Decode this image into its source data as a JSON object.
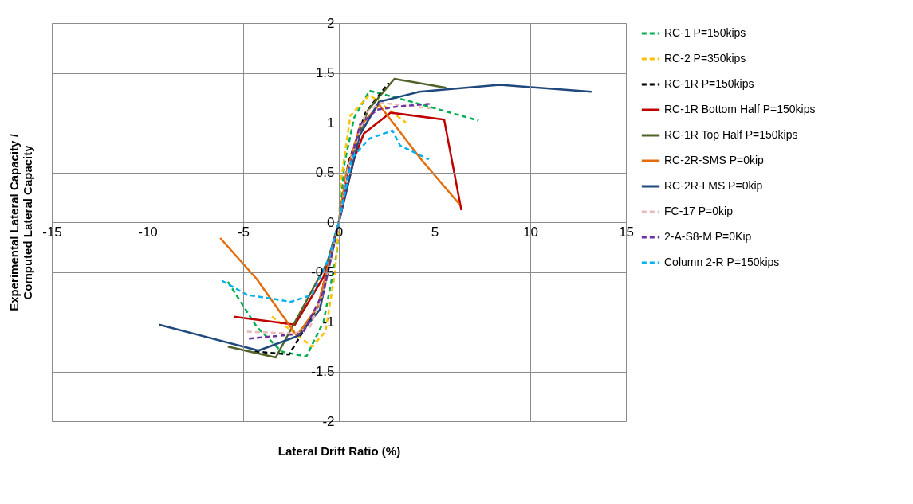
{
  "chart_data": {
    "type": "line",
    "xlabel": "Lateral Drift Ratio (%)",
    "ylabel": "Experimental Lateral Capacity / Computed Lateral Capacity",
    "xlim": [
      -15,
      15
    ],
    "xticks": [
      -15,
      -10,
      -5,
      0,
      5,
      10,
      15
    ],
    "ylim": [
      -2,
      2
    ],
    "yticks": [
      -2,
      -1.5,
      -1,
      -0.5,
      0,
      0.5,
      1,
      1.5,
      2
    ],
    "grid": true,
    "legend": "right",
    "series": [
      {
        "name": "RC-1 P=150kips",
        "color": "#00b050",
        "line_style": "dashed",
        "x": [
          -5.8,
          -4.3,
          -3.0,
          -1.7,
          -0.8,
          -0.1,
          0,
          0.3,
          0.8,
          1.6,
          3.6,
          7.3
        ],
        "values": [
          -0.6,
          -1.05,
          -1.3,
          -1.35,
          -1.0,
          -0.3,
          0,
          0.6,
          1.05,
          1.32,
          1.22,
          1.02
        ]
      },
      {
        "name": "RC-2 P=350kips",
        "color": "#ffc000",
        "line_style": "dashed",
        "x": [
          -3.5,
          -2.4,
          -1.4,
          -0.7,
          -0.2,
          0,
          0.1,
          0.6,
          1.6,
          3.5
        ],
        "values": [
          -0.95,
          -1.1,
          -1.25,
          -1.1,
          -0.5,
          0,
          0.4,
          1.07,
          1.28,
          1.0
        ]
      },
      {
        "name": "RC-1R P=150kips",
        "color": "#000000",
        "line_style": "dashed",
        "x": [
          -4.4,
          -2.6,
          -1.1,
          0,
          0.5,
          1.4,
          2.6
        ],
        "values": [
          -1.3,
          -1.33,
          -0.85,
          0,
          0.6,
          1.1,
          1.4
        ]
      },
      {
        "name": "RC-1R Bottom Half P=150kips",
        "color": "#c00000",
        "line_style": "solid",
        "x": [
          -5.5,
          -2.3,
          -0.8,
          0,
          0.8,
          1.3,
          2.7,
          5.5,
          6.4
        ],
        "values": [
          -0.95,
          -1.03,
          -0.55,
          0,
          0.64,
          0.89,
          1.1,
          1.03,
          0.12
        ]
      },
      {
        "name": "RC-1R Top  Half P=150kips",
        "color": "#4f6228",
        "line_style": "solid",
        "x": [
          -5.8,
          -3.3,
          -0.6,
          0,
          0.4,
          1.5,
          2.9,
          5.6
        ],
        "values": [
          -1.25,
          -1.36,
          -0.4,
          0,
          0.5,
          1.12,
          1.44,
          1.35
        ]
      },
      {
        "name": "RC-2R-SMS P=0kip",
        "color": "#e46c0a",
        "line_style": "solid",
        "x": [
          -6.2,
          -4.3,
          -2.2,
          -1.1,
          0,
          0.4,
          1.1,
          2.1,
          4.3,
          6.3
        ],
        "values": [
          -0.16,
          -0.57,
          -1.14,
          -0.85,
          0,
          0.5,
          0.96,
          1.18,
          0.63,
          0.18
        ]
      },
      {
        "name": "RC-2R-LMS P=0kip",
        "color": "#1f497d",
        "line_style": "solid",
        "x": [
          -9.4,
          -4.2,
          -2.1,
          -1.0,
          0,
          1.1,
          2.1,
          4.2,
          8.4,
          13.2
        ],
        "values": [
          -1.03,
          -1.29,
          -1.14,
          -0.88,
          0,
          0.88,
          1.21,
          1.31,
          1.38,
          1.31
        ]
      },
      {
        "name": "FC-17 P=0kip",
        "color": "#e6b9b8",
        "line_style": "dashed",
        "x": [
          -4.8,
          -2.3,
          -1.5,
          -0.8,
          0,
          0.5,
          1.4,
          2.2,
          4.9
        ],
        "values": [
          -1.1,
          -1.12,
          -1.05,
          -0.7,
          0,
          0.55,
          1.1,
          1.2,
          1.14
        ]
      },
      {
        "name": "2-A-S8-M P=0Kip",
        "color": "#7030a0",
        "line_style": "dashed",
        "x": [
          -4.7,
          -1.9,
          -0.8,
          0,
          0.5,
          1.1,
          2.0,
          3.0,
          4.8
        ],
        "values": [
          -1.17,
          -1.12,
          -0.7,
          0,
          0.5,
          0.98,
          1.13,
          1.16,
          1.19
        ]
      },
      {
        "name": "Column 2-R P=150kips",
        "color": "#00b0f0",
        "line_style": "dashed",
        "x": [
          -6.1,
          -4.8,
          -2.5,
          -1.4,
          -0.5,
          0,
          0.7,
          1.6,
          2.8,
          3.2,
          4.7
        ],
        "values": [
          -0.59,
          -0.73,
          -0.8,
          -0.73,
          -0.35,
          0,
          0.65,
          0.84,
          0.92,
          0.77,
          0.63
        ]
      }
    ]
  }
}
